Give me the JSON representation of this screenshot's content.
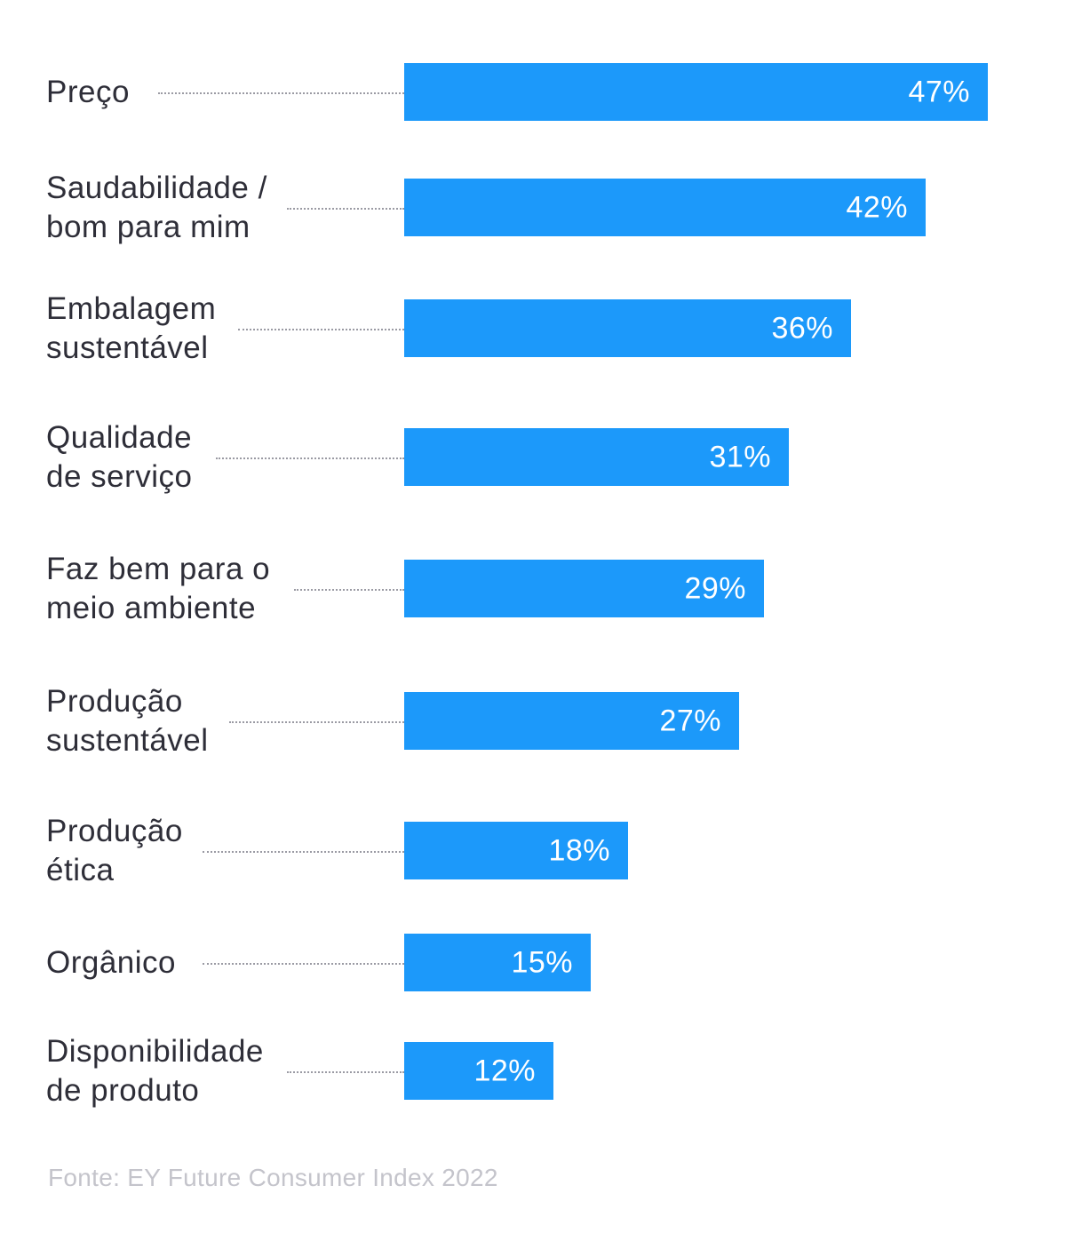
{
  "chart_data": {
    "type": "bar",
    "orientation": "horizontal",
    "categories": [
      "Preço",
      "Saudabilidade /\nbom para mim",
      "Embalagem\nsustentável",
      "Qualidade\nde serviço",
      "Faz bem para o\nmeio ambiente",
      "Produção\nsustentável",
      "Produção\nética",
      "Orgânico",
      "Disponibilidade\nde produto"
    ],
    "values": [
      47,
      42,
      36,
      31,
      29,
      27,
      18,
      15,
      12
    ],
    "value_labels": [
      "47%",
      "42%",
      "36%",
      "31%",
      "29%",
      "27%",
      "18%",
      "15%",
      "12%"
    ],
    "unit": "%",
    "xlim": [
      0,
      47
    ],
    "grid": false,
    "bar_color": "#1c99fa",
    "source": "Fonte: EY Future Consumer Index 2022"
  }
}
